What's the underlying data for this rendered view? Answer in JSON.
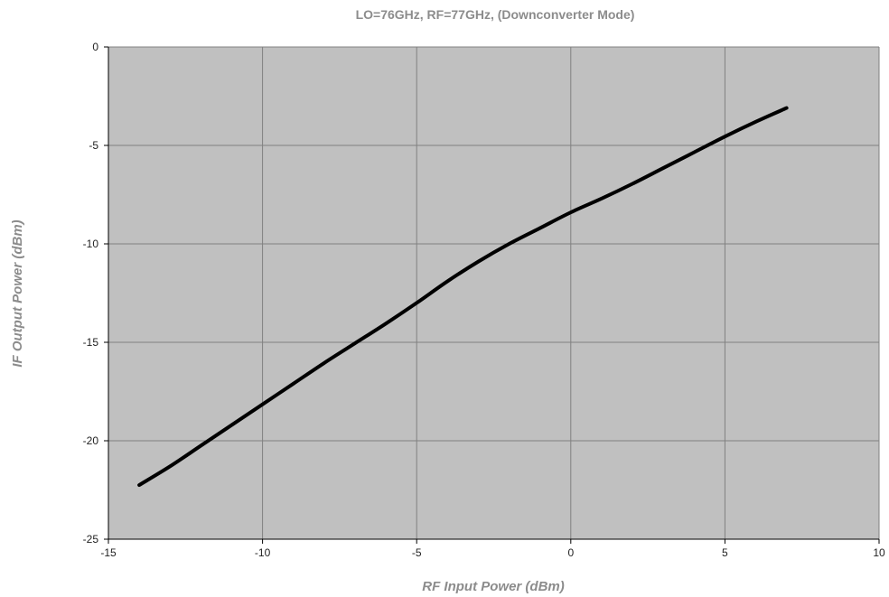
{
  "chart_data": {
    "type": "line",
    "title": "LO=76GHz, RF=77GHz, (Downconverter Mode)",
    "xlabel": "RF Input Power (dBm)",
    "ylabel": "IF Output Power (dBm)",
    "xlim": [
      -15,
      10
    ],
    "ylim": [
      -25,
      0
    ],
    "xticks": [
      -15,
      -10,
      -5,
      0,
      5,
      10
    ],
    "yticks": [
      0,
      -5,
      -10,
      -15,
      -20,
      -25
    ],
    "xtick_labels": [
      "-15",
      "-10",
      "-5",
      "0",
      "5",
      "10"
    ],
    "ytick_labels": [
      "0",
      "-5",
      "-10",
      "-15",
      "-20",
      "-25"
    ],
    "grid": true,
    "legend": "none",
    "colors": {
      "plot_background": "#c0c0c0",
      "line": "#000000",
      "grid": "#808080",
      "title_text": "#8c8c8c"
    },
    "series": [
      {
        "x": [
          -14,
          -13,
          -12,
          -11,
          -10,
          -9,
          -8,
          -7,
          -6,
          -5,
          -4,
          -3,
          -2,
          -1,
          0,
          1,
          2,
          3,
          4,
          5,
          6,
          7
        ],
        "y": [
          -22.25,
          -21.3,
          -20.25,
          -19.2,
          -18.15,
          -17.1,
          -16.05,
          -15.05,
          -14.05,
          -13.0,
          -11.9,
          -10.9,
          -10.0,
          -9.2,
          -8.4,
          -7.7,
          -6.95,
          -6.15,
          -5.35,
          -4.55,
          -3.8,
          -3.1
        ]
      }
    ]
  }
}
